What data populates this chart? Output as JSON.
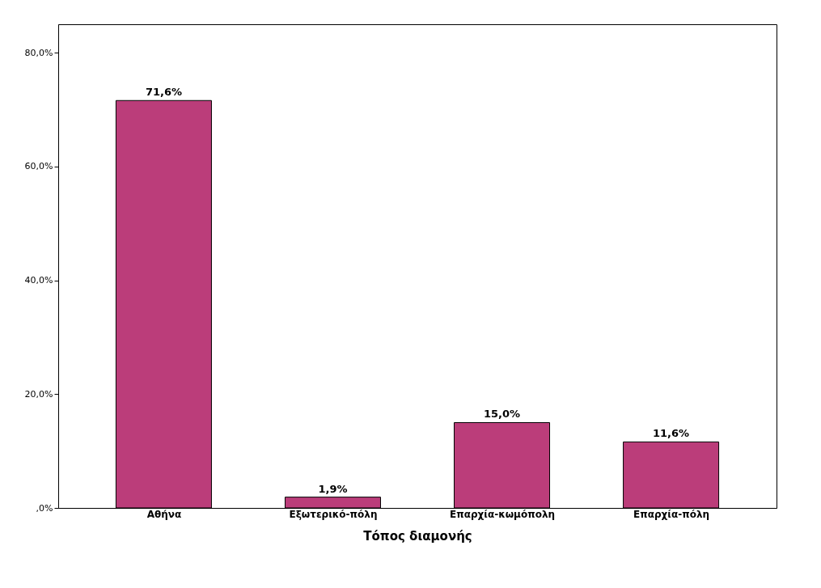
{
  "chart_data": {
    "type": "bar",
    "xlabel": "Τόπος διαμονής",
    "categories": [
      "Αθήνα",
      "Εξωτερικό-πόλη",
      "Επαρχία-κωμόπολη",
      "Επαρχία-πόλη"
    ],
    "values": [
      71.6,
      1.9,
      15.0,
      11.6
    ],
    "value_labels": [
      "71,6%",
      "1,9%",
      "15,0%",
      "11,6%"
    ],
    "color": "#bb3d7a",
    "ylim": [
      0,
      85
    ],
    "yticks": [
      {
        "value": 0,
        "label": ",0%"
      },
      {
        "value": 20,
        "label": "20,0%"
      },
      {
        "value": 40,
        "label": "40,0%"
      },
      {
        "value": 60,
        "label": "60,0%"
      },
      {
        "value": 80,
        "label": "80,0%"
      }
    ],
    "grid": false
  }
}
